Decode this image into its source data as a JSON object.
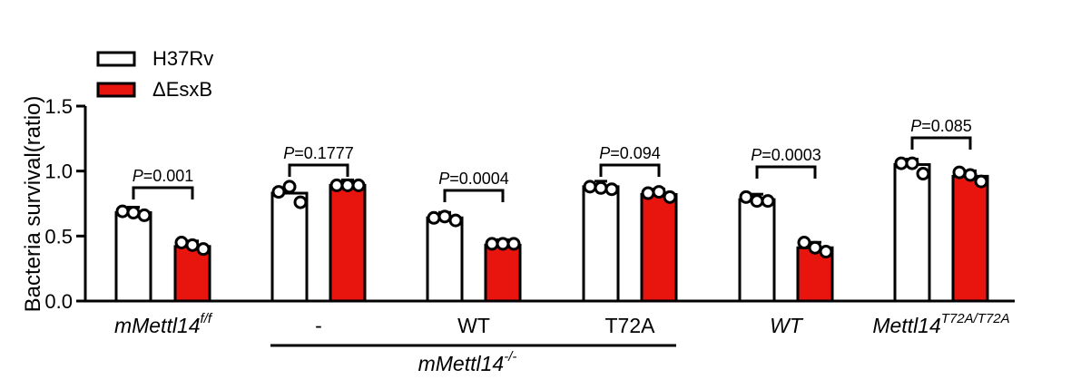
{
  "chart_data": {
    "type": "bar",
    "ylabel": "Bacteria survival(ratio)",
    "ylim": [
      0,
      1.5
    ],
    "yticks": [
      "0.0",
      "0.5",
      "1.0",
      "1.5"
    ],
    "legend": {
      "placement": "top-left",
      "entries": [
        {
          "name": "H37Rv",
          "color": "#ffffff"
        },
        {
          "name": "ΔEsxB",
          "color": "#e8150e"
        }
      ]
    },
    "series": [
      {
        "name": "H37Rv",
        "color": "#ffffff",
        "values": [
          0.68,
          0.83,
          0.64,
          0.88,
          0.78,
          1.05
        ]
      },
      {
        "name": "ΔEsxB",
        "color": "#e8150e",
        "values": [
          0.42,
          0.89,
          0.43,
          0.82,
          0.41,
          0.96
        ]
      }
    ],
    "points": [
      {
        "h37rv": [
          0.69,
          0.68,
          0.66
        ],
        "esxb": [
          0.45,
          0.43,
          0.4
        ]
      },
      {
        "h37rv": [
          0.84,
          0.88,
          0.76
        ],
        "esxb": [
          0.89,
          0.89,
          0.89
        ]
      },
      {
        "h37rv": [
          0.64,
          0.65,
          0.62
        ],
        "esxb": [
          0.44,
          0.44,
          0.44
        ]
      },
      {
        "h37rv": [
          0.88,
          0.87,
          0.86
        ],
        "esxb": [
          0.83,
          0.84,
          0.8
        ]
      },
      {
        "h37rv": [
          0.8,
          0.77,
          0.77
        ],
        "esxb": [
          0.45,
          0.41,
          0.38
        ]
      },
      {
        "h37rv": [
          1.06,
          1.06,
          0.98
        ],
        "esxb": [
          0.99,
          0.97,
          0.92
        ]
      }
    ],
    "pvalues": [
      {
        "prefix": "P",
        "text": "=0.001"
      },
      {
        "prefix": "P",
        "text": "=0.1777"
      },
      {
        "prefix": "P",
        "text": "=0.0004"
      },
      {
        "prefix": "P",
        "text": "=0.094"
      },
      {
        "prefix": "P",
        "text": "=0.0003"
      },
      {
        "prefix": "P",
        "text": "=0.085"
      }
    ],
    "categories": [
      {
        "main": "mMettl14",
        "sup": "f/f",
        "italic": true
      },
      {
        "main": "-",
        "sup": "",
        "italic": false
      },
      {
        "main": "WT",
        "sup": "",
        "italic": false
      },
      {
        "main": "T72A",
        "sup": "",
        "italic": false
      },
      {
        "main": "WT",
        "sup": "",
        "italic": true
      },
      {
        "main": "Mettl14",
        "sup": "T72A/T72A",
        "italic": true
      }
    ],
    "group_label": {
      "main": "mMettl14",
      "sup": "-/-"
    }
  }
}
